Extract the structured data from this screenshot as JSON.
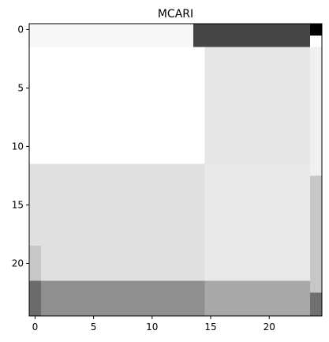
{
  "chart_data": {
    "type": "heatmap",
    "title": "MCARI",
    "xlabel": "",
    "ylabel": "",
    "colormap": "gray",
    "xlim": [
      -0.5,
      24.5
    ],
    "ylim": [
      24.5,
      -0.5
    ],
    "x_ticks": [
      0,
      5,
      10,
      15,
      20
    ],
    "y_ticks": [
      0,
      5,
      10,
      15,
      20
    ],
    "grid": false,
    "regions": [
      {
        "cols": [
          0,
          13
        ],
        "rows": [
          0,
          1
        ],
        "value": 0.97
      },
      {
        "cols": [
          14,
          23
        ],
        "rows": [
          0,
          1
        ],
        "value": 0.27
      },
      {
        "cols": [
          24,
          24
        ],
        "rows": [
          0,
          0
        ],
        "value": 0.0
      },
      {
        "cols": [
          24,
          24
        ],
        "rows": [
          1,
          1
        ],
        "value": 1.0
      },
      {
        "cols": [
          0,
          14
        ],
        "rows": [
          2,
          11
        ],
        "value": 1.0
      },
      {
        "cols": [
          15,
          23
        ],
        "rows": [
          2,
          11
        ],
        "value": 0.9
      },
      {
        "cols": [
          24,
          24
        ],
        "rows": [
          2,
          12
        ],
        "value": 0.94
      },
      {
        "cols": [
          0,
          14
        ],
        "rows": [
          12,
          21
        ],
        "value": 0.88
      },
      {
        "cols": [
          15,
          23
        ],
        "rows": [
          12,
          21
        ],
        "value": 0.91
      },
      {
        "cols": [
          24,
          24
        ],
        "rows": [
          13,
          22
        ],
        "value": 0.78
      },
      {
        "cols": [
          0,
          0
        ],
        "rows": [
          19,
          21
        ],
        "value": 0.78
      },
      {
        "cols": [
          0,
          0
        ],
        "rows": [
          22,
          24
        ],
        "value": 0.42
      },
      {
        "cols": [
          1,
          14
        ],
        "rows": [
          22,
          24
        ],
        "value": 0.56
      },
      {
        "cols": [
          15,
          23
        ],
        "rows": [
          22,
          24
        ],
        "value": 0.66
      },
      {
        "cols": [
          24,
          24
        ],
        "rows": [
          23,
          24
        ],
        "value": 0.44
      }
    ]
  }
}
